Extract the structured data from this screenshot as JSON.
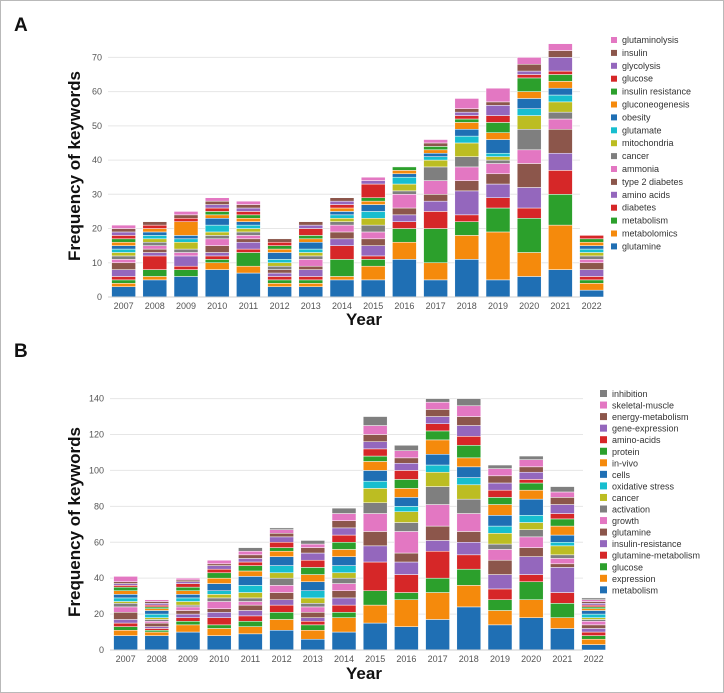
{
  "chart_data": [
    {
      "panel": "A",
      "type": "bar",
      "stacked": true,
      "xlabel": "Year",
      "ylabel": "Frequency of keywords",
      "ylim": [
        0,
        78
      ],
      "yticks": [
        0,
        10,
        20,
        30,
        40,
        50,
        60,
        70
      ],
      "categories": [
        "2007",
        "2008",
        "2009",
        "2010",
        "2011",
        "2012",
        "2013",
        "2014",
        "2015",
        "2016",
        "2017",
        "2018",
        "2019",
        "2020",
        "2021",
        "2022"
      ],
      "series": [
        {
          "name": "glutamine",
          "color": "#1f6fb4",
          "values": [
            3,
            5,
            6,
            8,
            7,
            3,
            3,
            5,
            5,
            11,
            5,
            11,
            5,
            6,
            8,
            2
          ]
        },
        {
          "name": "metabolomics",
          "color": "#f58a0c",
          "values": [
            1,
            1,
            0,
            2,
            2,
            1,
            1,
            1,
            4,
            5,
            5,
            7,
            14,
            7,
            13,
            2
          ]
        },
        {
          "name": "metabolism",
          "color": "#2ca02c",
          "values": [
            1,
            2,
            2,
            1,
            4,
            1,
            1,
            5,
            2,
            4,
            10,
            4,
            7,
            10,
            9,
            1
          ]
        },
        {
          "name": "diabetes",
          "color": "#d62728",
          "values": [
            1,
            4,
            1,
            1,
            1,
            1,
            1,
            4,
            1,
            2,
            5,
            2,
            3,
            3,
            7,
            1
          ]
        },
        {
          "name": "amino acids",
          "color": "#9467bd",
          "values": [
            2,
            1,
            3,
            1,
            2,
            1,
            2,
            2,
            3,
            2,
            3,
            7,
            4,
            6,
            5,
            2
          ]
        },
        {
          "name": "type 2 diabetes",
          "color": "#8c564b",
          "values": [
            2,
            1,
            0,
            2,
            1,
            1,
            1,
            2,
            2,
            2,
            2,
            3,
            3,
            7,
            7,
            2
          ]
        },
        {
          "name": "ammonia",
          "color": "#e377c2",
          "values": [
            1,
            1,
            1,
            2,
            1,
            0,
            2,
            2,
            2,
            4,
            4,
            4,
            3,
            4,
            3,
            1
          ]
        },
        {
          "name": "cancer",
          "color": "#7f7f7f",
          "values": [
            1,
            1,
            1,
            1,
            1,
            1,
            1,
            1,
            2,
            1,
            4,
            3,
            1,
            6,
            2,
            1
          ]
        },
        {
          "name": "mitochondria",
          "color": "#bcbd22",
          "values": [
            1,
            1,
            2,
            1,
            1,
            1,
            1,
            1,
            2,
            2,
            2,
            4,
            1,
            4,
            3,
            1
          ]
        },
        {
          "name": "glutamate",
          "color": "#17becf",
          "values": [
            1,
            1,
            1,
            2,
            1,
            1,
            1,
            1,
            2,
            2,
            1,
            2,
            1,
            2,
            2,
            1
          ]
        },
        {
          "name": "obesity",
          "color": "#1f6fb4",
          "values": [
            1,
            1,
            1,
            2,
            1,
            2,
            2,
            1,
            2,
            1,
            1,
            2,
            4,
            3,
            2,
            1
          ]
        },
        {
          "name": "gluconeogenesis",
          "color": "#f58a0c",
          "values": [
            1,
            1,
            4,
            1,
            1,
            1,
            1,
            1,
            1,
            1,
            1,
            2,
            2,
            2,
            2,
            1
          ]
        },
        {
          "name": "insulin resistance",
          "color": "#2ca02c",
          "values": [
            1,
            0,
            0,
            1,
            1,
            1,
            1,
            0,
            1,
            1,
            1,
            1,
            3,
            4,
            2,
            1
          ]
        },
        {
          "name": "glucose",
          "color": "#d62728",
          "values": [
            1,
            1,
            1,
            1,
            1,
            1,
            2,
            1,
            4,
            0,
            0,
            1,
            2,
            1,
            1,
            1
          ]
        },
        {
          "name": "glycolysis",
          "color": "#9467bd",
          "values": [
            1,
            0,
            0,
            1,
            1,
            0,
            1,
            1,
            1,
            0,
            0,
            1,
            3,
            1,
            4,
            0
          ]
        },
        {
          "name": "insulin",
          "color": "#8c564b",
          "values": [
            1,
            1,
            1,
            1,
            1,
            1,
            1,
            1,
            0,
            0,
            1,
            1,
            1,
            2,
            2,
            0
          ]
        },
        {
          "name": "glutaminolysis",
          "color": "#e377c2",
          "values": [
            1,
            0,
            1,
            1,
            1,
            0,
            0,
            0,
            1,
            0,
            1,
            3,
            4,
            2,
            2,
            0
          ]
        }
      ]
    },
    {
      "panel": "B",
      "type": "bar",
      "stacked": true,
      "xlabel": "Year",
      "ylabel": "Frequency of keywords",
      "ylim": [
        0,
        142
      ],
      "yticks": [
        0,
        20,
        40,
        60,
        80,
        100,
        120,
        140
      ],
      "categories": [
        "2007",
        "2008",
        "2009",
        "2010",
        "2011",
        "2012",
        "2013",
        "2014",
        "2015",
        "2016",
        "2017",
        "2018",
        "2019",
        "2020",
        "2021",
        "2022"
      ],
      "series": [
        {
          "name": "metabolism",
          "color": "#1f6fb4",
          "values": [
            8,
            8,
            10,
            8,
            9,
            11,
            6,
            10,
            15,
            13,
            17,
            24,
            14,
            18,
            12,
            3
          ]
        },
        {
          "name": "expression",
          "color": "#f58a0c",
          "values": [
            3,
            2,
            4,
            4,
            4,
            6,
            5,
            8,
            10,
            15,
            15,
            12,
            8,
            10,
            6,
            3
          ]
        },
        {
          "name": "glucose",
          "color": "#2ca02c",
          "values": [
            2,
            1,
            2,
            2,
            3,
            4,
            3,
            3,
            8,
            4,
            8,
            9,
            6,
            10,
            8,
            2
          ]
        },
        {
          "name": "glutamine-metabolism",
          "color": "#d62728",
          "values": [
            2,
            1,
            2,
            4,
            3,
            4,
            2,
            4,
            16,
            10,
            15,
            8,
            6,
            4,
            6,
            2
          ]
        },
        {
          "name": "insulin-resistance",
          "color": "#9467bd",
          "values": [
            2,
            1,
            2,
            3,
            3,
            3,
            2,
            4,
            9,
            7,
            6,
            7,
            8,
            10,
            14,
            2
          ]
        },
        {
          "name": "glutamine",
          "color": "#8c564b",
          "values": [
            4,
            2,
            2,
            2,
            3,
            4,
            3,
            4,
            8,
            5,
            8,
            6,
            8,
            5,
            2,
            2
          ]
        },
        {
          "name": "growth",
          "color": "#e377c2",
          "values": [
            3,
            1,
            2,
            4,
            2,
            4,
            3,
            4,
            10,
            12,
            12,
            10,
            6,
            6,
            3,
            2
          ]
        },
        {
          "name": "activation",
          "color": "#7f7f7f",
          "values": [
            2,
            1,
            1,
            2,
            2,
            4,
            2,
            3,
            6,
            5,
            10,
            8,
            3,
            4,
            2,
            1
          ]
        },
        {
          "name": "cancer",
          "color": "#bcbd22",
          "values": [
            1,
            1,
            2,
            2,
            3,
            3,
            3,
            3,
            8,
            6,
            8,
            8,
            6,
            4,
            5,
            1
          ]
        },
        {
          "name": "oxidative stress",
          "color": "#17becf",
          "values": [
            2,
            2,
            2,
            2,
            4,
            4,
            4,
            4,
            4,
            3,
            4,
            4,
            4,
            4,
            2,
            2
          ]
        },
        {
          "name": "cells",
          "color": "#1f6fb4",
          "values": [
            2,
            2,
            2,
            4,
            5,
            5,
            5,
            5,
            6,
            5,
            6,
            6,
            6,
            9,
            4,
            2
          ]
        },
        {
          "name": "in-vivo",
          "color": "#f58a0c",
          "values": [
            2,
            1,
            2,
            3,
            3,
            3,
            4,
            4,
            5,
            5,
            8,
            5,
            6,
            5,
            5,
            1
          ]
        },
        {
          "name": "protein",
          "color": "#2ca02c",
          "values": [
            2,
            1,
            2,
            3,
            3,
            2,
            4,
            4,
            3,
            5,
            5,
            7,
            4,
            4,
            4,
            1
          ]
        },
        {
          "name": "amino-acids",
          "color": "#d62728",
          "values": [
            1,
            1,
            2,
            2,
            2,
            3,
            4,
            4,
            4,
            5,
            4,
            5,
            4,
            2,
            3,
            1
          ]
        },
        {
          "name": "gene-expression",
          "color": "#9467bd",
          "values": [
            1,
            1,
            1,
            2,
            2,
            3,
            4,
            4,
            4,
            4,
            4,
            6,
            4,
            4,
            5,
            1
          ]
        },
        {
          "name": "energy-metabolism",
          "color": "#8c564b",
          "values": [
            1,
            1,
            1,
            1,
            2,
            2,
            3,
            4,
            4,
            3,
            4,
            5,
            4,
            3,
            4,
            1
          ]
        },
        {
          "name": "skeletal-muscle",
          "color": "#e377c2",
          "values": [
            3,
            1,
            1,
            2,
            2,
            2,
            2,
            4,
            5,
            4,
            4,
            6,
            4,
            4,
            3,
            1
          ]
        },
        {
          "name": "inhibition",
          "color": "#7f7f7f",
          "values": [
            0,
            0,
            0,
            0,
            2,
            1,
            2,
            3,
            5,
            3,
            2,
            4,
            2,
            2,
            3,
            1
          ]
        }
      ]
    }
  ]
}
